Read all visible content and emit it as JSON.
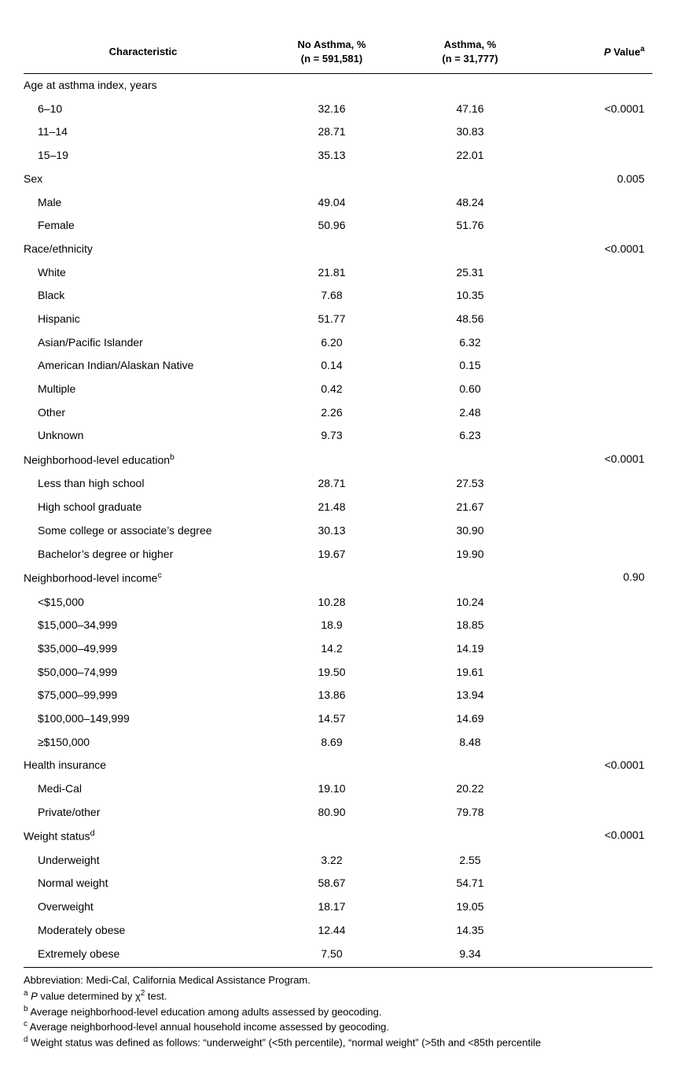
{
  "table": {
    "headers": {
      "characteristic": "Characteristic",
      "col2_line1": "No Asthma, %",
      "col2_line2": "(n = 591,581)",
      "col3_line1": "Asthma, %",
      "col3_line2": "(n = 31,777)",
      "col4_prefix": "P",
      "col4_suffix": " Value",
      "col4_sup": "a"
    },
    "sections": [
      {
        "label": "Age at asthma index, years",
        "sup": "",
        "pvalue": "",
        "rows": [
          {
            "label": "6–10",
            "c2": "32.16",
            "c3": "47.16",
            "p": "<0.0001"
          },
          {
            "label": "11–14",
            "c2": "28.71",
            "c3": "30.83",
            "p": ""
          },
          {
            "label": "15–19",
            "c2": "35.13",
            "c3": "22.01",
            "p": ""
          }
        ]
      },
      {
        "label": "Sex",
        "sup": "",
        "pvalue": "0.005",
        "rows": [
          {
            "label": "Male",
            "c2": "49.04",
            "c3": "48.24",
            "p": ""
          },
          {
            "label": "Female",
            "c2": "50.96",
            "c3": "51.76",
            "p": ""
          }
        ]
      },
      {
        "label": "Race/ethnicity",
        "sup": "",
        "pvalue": "<0.0001",
        "rows": [
          {
            "label": "White",
            "c2": "21.81",
            "c3": "25.31",
            "p": ""
          },
          {
            "label": "Black",
            "c2": "7.68",
            "c3": "10.35",
            "p": ""
          },
          {
            "label": "Hispanic",
            "c2": "51.77",
            "c3": "48.56",
            "p": ""
          },
          {
            "label": "Asian/Pacific Islander",
            "c2": "6.20",
            "c3": "6.32",
            "p": ""
          },
          {
            "label": "American Indian/Alaskan Native",
            "c2": "0.14",
            "c3": "0.15",
            "p": ""
          },
          {
            "label": "Multiple",
            "c2": "0.42",
            "c3": "0.60",
            "p": ""
          },
          {
            "label": "Other",
            "c2": "2.26",
            "c3": "2.48",
            "p": ""
          },
          {
            "label": "Unknown",
            "c2": "9.73",
            "c3": "6.23",
            "p": ""
          }
        ]
      },
      {
        "label": "Neighborhood-level education",
        "sup": "b",
        "pvalue": "<0.0001",
        "rows": [
          {
            "label": "Less than high school",
            "c2": "28.71",
            "c3": "27.53",
            "p": ""
          },
          {
            "label": "High school graduate",
            "c2": "21.48",
            "c3": "21.67",
            "p": ""
          },
          {
            "label": "Some college or associate’s degree",
            "c2": "30.13",
            "c3": "30.90",
            "p": ""
          },
          {
            "label": "Bachelor’s degree or higher",
            "c2": "19.67",
            "c3": "19.90",
            "p": ""
          }
        ]
      },
      {
        "label": "Neighborhood-level income",
        "sup": "c",
        "pvalue": "0.90",
        "rows": [
          {
            "label": "<$15,000",
            "c2": "10.28",
            "c3": "10.24",
            "p": ""
          },
          {
            "label": "$15,000–34,999",
            "c2": "18.9",
            "c3": "18.85",
            "p": ""
          },
          {
            "label": "$35,000–49,999",
            "c2": "14.2",
            "c3": "14.19",
            "p": ""
          },
          {
            "label": "$50,000–74,999",
            "c2": "19.50",
            "c3": "19.61",
            "p": ""
          },
          {
            "label": "$75,000–99,999",
            "c2": "13.86",
            "c3": "13.94",
            "p": ""
          },
          {
            "label": "$100,000–149,999",
            "c2": "14.57",
            "c3": "14.69",
            "p": ""
          },
          {
            "label": "≥$150,000",
            "c2": "8.69",
            "c3": "8.48",
            "p": ""
          }
        ]
      },
      {
        "label": "Health insurance",
        "sup": "",
        "pvalue": "<0.0001",
        "rows": [
          {
            "label": "Medi-Cal",
            "c2": "19.10",
            "c3": "20.22",
            "p": ""
          },
          {
            "label": "Private/other",
            "c2": "80.90",
            "c3": "79.78",
            "p": ""
          }
        ]
      },
      {
        "label": "Weight status",
        "sup": "d",
        "pvalue": "<0.0001",
        "rows": [
          {
            "label": "Underweight",
            "c2": "3.22",
            "c3": "2.55",
            "p": ""
          },
          {
            "label": "Normal weight",
            "c2": "58.67",
            "c3": "54.71",
            "p": ""
          },
          {
            "label": "Overweight",
            "c2": "18.17",
            "c3": "19.05",
            "p": ""
          },
          {
            "label": "Moderately obese",
            "c2": "12.44",
            "c3": "14.35",
            "p": ""
          },
          {
            "label": "Extremely obese",
            "c2": "7.50",
            "c3": "9.34",
            "p": ""
          }
        ]
      }
    ]
  },
  "footnotes": {
    "abbrev": "Abbreviation: Medi-Cal, California Medical Assistance Program.",
    "a_sup": "a",
    "a_text_prefix": " ",
    "a_text_p": "P",
    "a_text_mid": " value determined by χ",
    "a_text_sup2": "2",
    "a_text_suffix": " test.",
    "b_sup": "b",
    "b_text": " Average neighborhood-level education among adults assessed by geocoding.",
    "c_sup": "c",
    "c_text": " Average neighborhood-level annual household income assessed by geocoding.",
    "d_sup": "d",
    "d_text": " Weight status was defined as follows: “underweight” (<5th percentile), “normal weight” (>5th and <85th percentile"
  }
}
